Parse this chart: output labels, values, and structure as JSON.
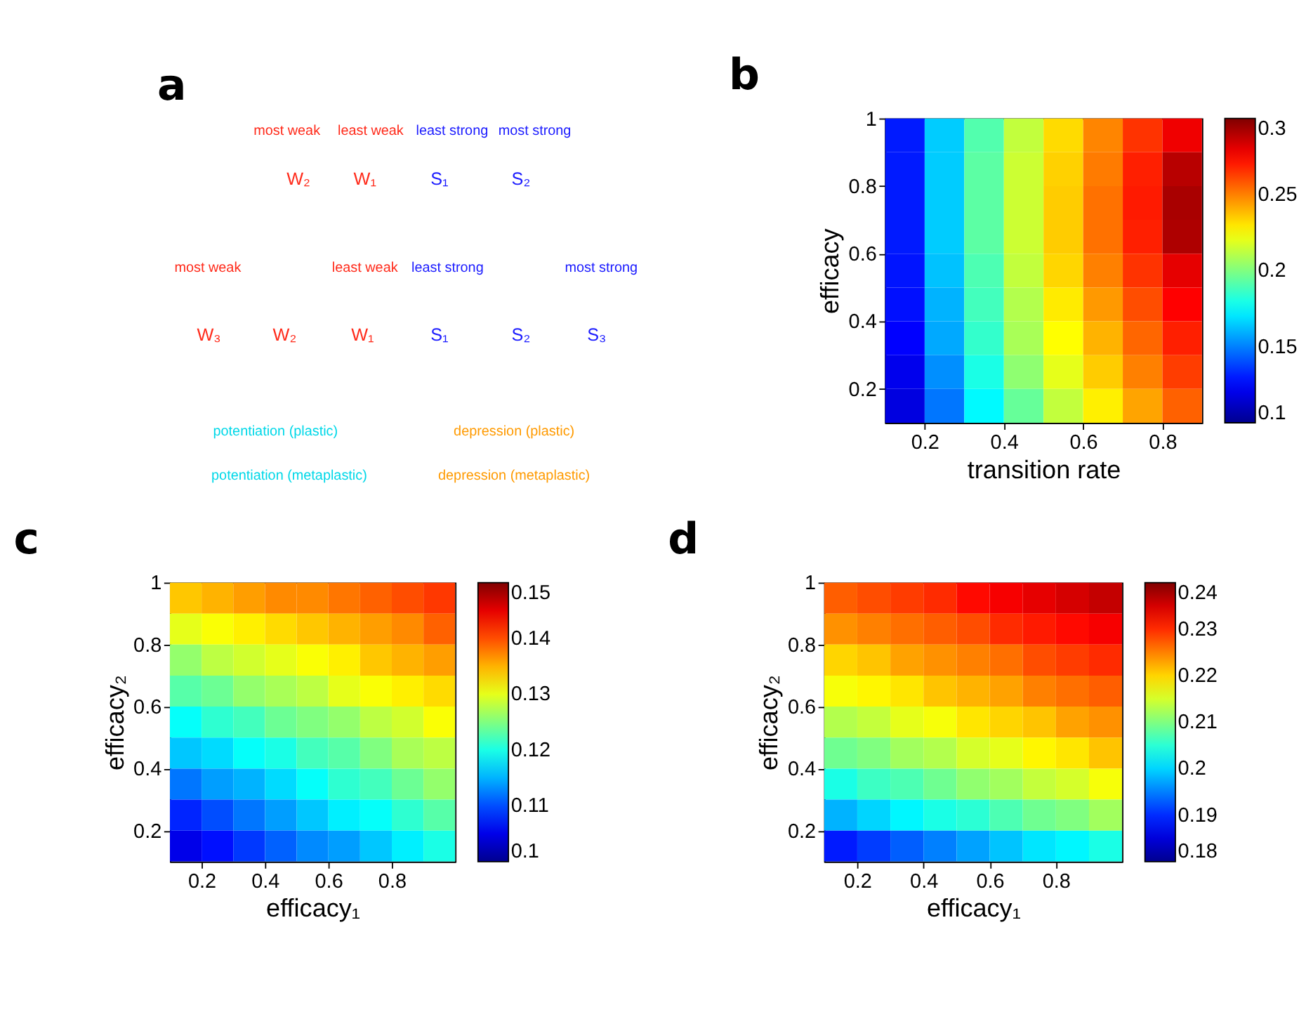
{
  "chart_data": [
    {
      "type": "other",
      "title": "a",
      "annotations": [
        "most weak",
        "least weak",
        "least strong",
        "most strong",
        "W₂",
        "W₁",
        "S₁",
        "S₂",
        "most weak",
        "least weak",
        "least strong",
        "most strong",
        "W₃",
        "W₂",
        "W₁",
        "S₁",
        "S₂",
        "S₃",
        "potentiation (plastic)",
        "depression (plastic)",
        "potentiation (metaplastic)",
        "depression (metaplastic)"
      ]
    },
    {
      "type": "heatmap",
      "title": "b",
      "xlabel": "transition rate",
      "ylabel": "efficacy",
      "x": [
        0.15,
        0.25,
        0.35,
        0.45,
        0.55,
        0.65,
        0.75,
        0.85
      ],
      "y": [
        0.95,
        0.85,
        0.75,
        0.65,
        0.55,
        0.45,
        0.35,
        0.25,
        0.15
      ],
      "cells": [
        [
          0.13,
          0.165,
          0.191,
          0.213,
          0.232,
          0.249,
          0.265,
          0.278
        ],
        [
          0.13,
          0.165,
          0.193,
          0.215,
          0.234,
          0.251,
          0.269,
          0.289
        ],
        [
          0.13,
          0.165,
          0.193,
          0.215,
          0.235,
          0.253,
          0.27,
          0.292
        ],
        [
          0.13,
          0.165,
          0.193,
          0.215,
          0.235,
          0.253,
          0.269,
          0.291
        ],
        [
          0.129,
          0.163,
          0.19,
          0.213,
          0.233,
          0.25,
          0.265,
          0.28
        ],
        [
          0.128,
          0.16,
          0.188,
          0.21,
          0.229,
          0.245,
          0.26,
          0.275
        ],
        [
          0.125,
          0.158,
          0.185,
          0.208,
          0.225,
          0.24,
          0.255,
          0.269
        ],
        [
          0.121,
          0.153,
          0.18,
          0.203,
          0.22,
          0.235,
          0.25,
          0.263
        ],
        [
          0.118,
          0.148,
          0.174,
          0.195,
          0.213,
          0.228,
          0.243,
          0.256
        ]
      ],
      "xlim": [
        0.1,
        0.9
      ],
      "ylim": [
        0.1,
        1
      ],
      "xticks": [
        0.2,
        0.4,
        0.6,
        0.8
      ],
      "yticks": [
        0.2,
        0.4,
        0.6,
        0.8,
        1
      ],
      "clim": [
        0.1,
        0.3
      ],
      "cticks": [
        0.1,
        0.15,
        0.2,
        0.25,
        0.3
      ]
    },
    {
      "type": "heatmap",
      "title": "c",
      "xlabel": "efficacy₁",
      "ylabel": "efficacy₂",
      "x": [
        0.15,
        0.25,
        0.35,
        0.45,
        0.55,
        0.65,
        0.75,
        0.85,
        0.95
      ],
      "y": [
        0.95,
        0.85,
        0.75,
        0.65,
        0.55,
        0.45,
        0.35,
        0.25,
        0.15
      ],
      "cells": [
        [
          0.134,
          0.135,
          0.136,
          0.137,
          0.137,
          0.138,
          0.139,
          0.14,
          0.141
        ],
        [
          0.13,
          0.131,
          0.132,
          0.133,
          0.134,
          0.135,
          0.136,
          0.137,
          0.139
        ],
        [
          0.126,
          0.128,
          0.129,
          0.13,
          0.131,
          0.132,
          0.134,
          0.135,
          0.136
        ],
        [
          0.123,
          0.124,
          0.126,
          0.127,
          0.128,
          0.13,
          0.131,
          0.132,
          0.133
        ],
        [
          0.119,
          0.121,
          0.122,
          0.124,
          0.125,
          0.126,
          0.128,
          0.129,
          0.131
        ],
        [
          0.116,
          0.117,
          0.119,
          0.12,
          0.122,
          0.123,
          0.125,
          0.127,
          0.128
        ],
        [
          0.112,
          0.114,
          0.115,
          0.117,
          0.119,
          0.121,
          0.122,
          0.124,
          0.126
        ],
        [
          0.108,
          0.11,
          0.112,
          0.114,
          0.116,
          0.118,
          0.119,
          0.121,
          0.123
        ],
        [
          0.105,
          0.107,
          0.109,
          0.111,
          0.113,
          0.114,
          0.116,
          0.118,
          0.12
        ]
      ],
      "xlim": [
        0.1,
        1
      ],
      "ylim": [
        0.1,
        1
      ],
      "xticks": [
        0.2,
        0.4,
        0.6,
        0.8
      ],
      "yticks": [
        0.2,
        0.4,
        0.6,
        0.8,
        1
      ],
      "clim": [
        0.1,
        0.15
      ],
      "cticks": [
        0.1,
        0.11,
        0.12,
        0.13,
        0.14,
        0.15
      ]
    },
    {
      "type": "heatmap",
      "title": "d",
      "xlabel": "efficacy₁",
      "ylabel": "efficacy₂",
      "x": [
        0.15,
        0.25,
        0.35,
        0.45,
        0.55,
        0.65,
        0.75,
        0.85,
        0.95
      ],
      "y": [
        0.95,
        0.85,
        0.75,
        0.65,
        0.55,
        0.45,
        0.35,
        0.25,
        0.15
      ],
      "cells": [
        [
          0.227,
          0.228,
          0.229,
          0.23,
          0.232,
          0.233,
          0.234,
          0.235,
          0.236
        ],
        [
          0.224,
          0.225,
          0.226,
          0.227,
          0.228,
          0.23,
          0.231,
          0.232,
          0.233
        ],
        [
          0.22,
          0.221,
          0.223,
          0.224,
          0.225,
          0.226,
          0.228,
          0.229,
          0.23
        ],
        [
          0.217,
          0.218,
          0.219,
          0.221,
          0.222,
          0.223,
          0.225,
          0.226,
          0.227
        ],
        [
          0.213,
          0.214,
          0.216,
          0.217,
          0.219,
          0.22,
          0.221,
          0.223,
          0.224
        ],
        [
          0.209,
          0.21,
          0.212,
          0.213,
          0.215,
          0.216,
          0.218,
          0.219,
          0.221
        ],
        [
          0.204,
          0.206,
          0.207,
          0.209,
          0.211,
          0.212,
          0.214,
          0.215,
          0.217
        ],
        [
          0.198,
          0.2,
          0.202,
          0.204,
          0.205,
          0.207,
          0.209,
          0.21,
          0.212
        ],
        [
          0.189,
          0.191,
          0.193,
          0.195,
          0.197,
          0.199,
          0.201,
          0.202,
          0.204
        ]
      ],
      "xlim": [
        0.1,
        1
      ],
      "ylim": [
        0.1,
        1
      ],
      "xticks": [
        0.2,
        0.4,
        0.6,
        0.8
      ],
      "yticks": [
        0.2,
        0.4,
        0.6,
        0.8,
        1
      ],
      "clim": [
        0.18,
        0.24
      ],
      "cticks": [
        0.18,
        0.19,
        0.2,
        0.21,
        0.22,
        0.23,
        0.24
      ]
    }
  ]
}
